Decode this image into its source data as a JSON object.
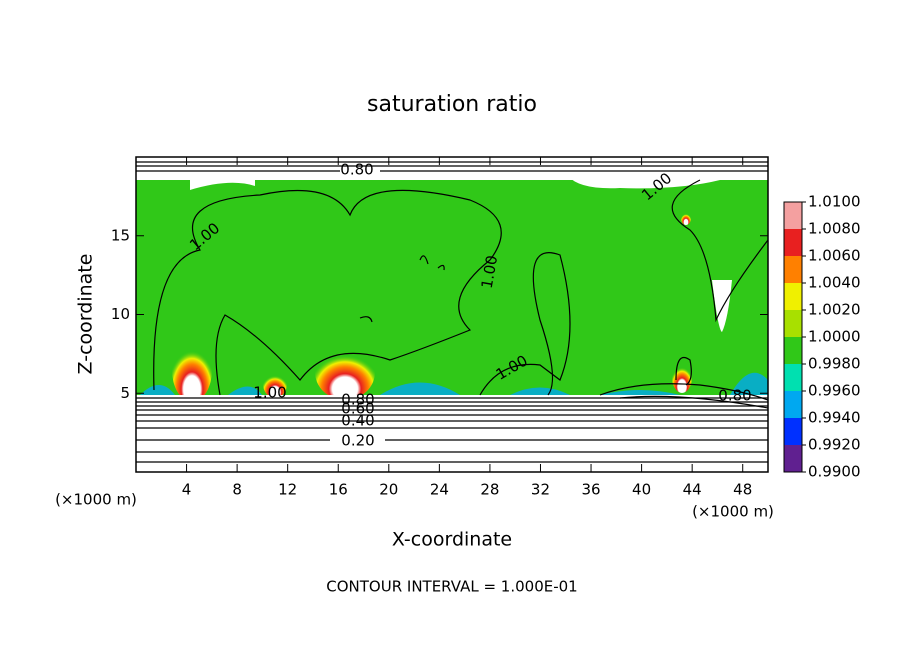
{
  "chart_data": {
    "type": "contour",
    "title": "saturation ratio",
    "x_label": "X-coordinate",
    "y_label": "Z-coordinate",
    "x_unit": "(×1000 m)",
    "note": "CONTOUR INTERVAL = 1.000E-01",
    "xlim": [
      0,
      50
    ],
    "xticks": [
      4,
      8,
      12,
      16,
      20,
      24,
      28,
      32,
      36,
      40,
      44,
      48
    ],
    "ylim": [
      0,
      20
    ],
    "yticks": [
      5,
      10,
      15
    ],
    "contour_labels": [
      {
        "value": 0.8,
        "label": "0.80"
      },
      {
        "value": 1,
        "label": "1.00"
      },
      {
        "value": 1,
        "label": "1.00"
      },
      {
        "value": 1,
        "label": "1.00"
      },
      {
        "value": 1,
        "label": "1.00"
      },
      {
        "value": 1,
        "label": "1.00"
      },
      {
        "value": 0.8,
        "label": "0.80"
      },
      {
        "value": 0.8,
        "label": "0.80"
      },
      {
        "value": 0.6,
        "label": "0.60"
      },
      {
        "value": 0.4,
        "label": "0.40"
      },
      {
        "value": 0.2,
        "label": "0.20"
      }
    ],
    "colorbar": {
      "ticks": [
        {
          "value": 1.01,
          "label": "1.0100"
        },
        {
          "value": 1.008,
          "label": "1.0080"
        },
        {
          "value": 1.006,
          "label": "1.0060"
        },
        {
          "value": 1.004,
          "label": "1.0040"
        },
        {
          "value": 1.002,
          "label": "1.0020"
        },
        {
          "value": 1,
          "label": "1.0000"
        },
        {
          "value": 0.998,
          "label": "0.9980"
        },
        {
          "value": 0.996,
          "label": "0.9960"
        },
        {
          "value": 0.994,
          "label": "0.9940"
        },
        {
          "value": 0.992,
          "label": "0.9920"
        },
        {
          "value": 0.99,
          "label": "0.9900"
        }
      ],
      "colors": [
        "#f4a0a0",
        "#e82020",
        "#ff8000",
        "#f0f000",
        "#a8e000",
        "#30c818",
        "#00e0b0",
        "#00a8f0",
        "#0030ff",
        "#602090"
      ]
    }
  }
}
